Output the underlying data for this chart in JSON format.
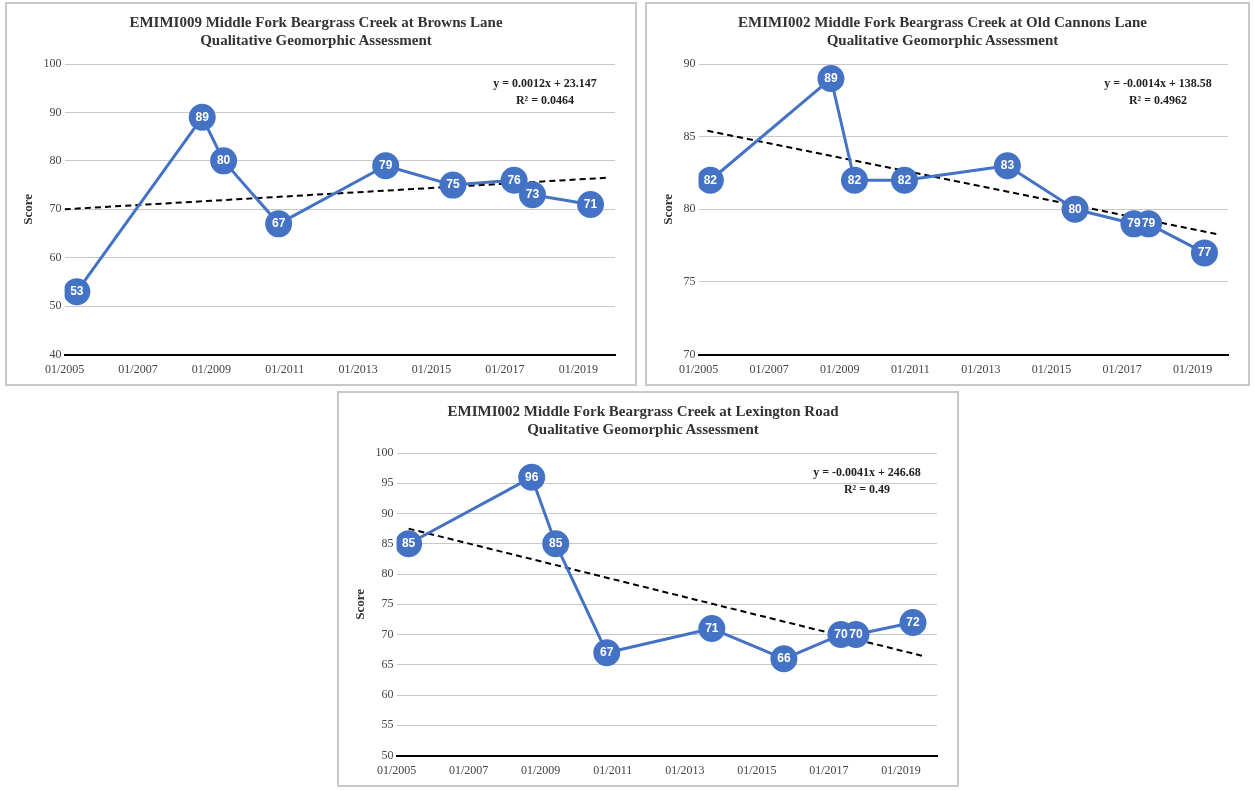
{
  "chart_data": [
    {
      "type": "line",
      "title": [
        "EMIMI009 Middle Fork Beargrass Creek at Browns Lane",
        "Qualitative Geomorphic Assessment"
      ],
      "ylabel": "Score",
      "xlim": [
        "2005-01",
        "2020-01"
      ],
      "xticks": [
        {
          "value": "2005-01",
          "label": "01/2005"
        },
        {
          "value": "2007-01",
          "label": "01/2007"
        },
        {
          "value": "2009-01",
          "label": "01/2009"
        },
        {
          "value": "2011-01",
          "label": "01/2011"
        },
        {
          "value": "2013-01",
          "label": "01/2013"
        },
        {
          "value": "2015-01",
          "label": "01/2015"
        },
        {
          "value": "2017-01",
          "label": "01/2017"
        },
        {
          "value": "2019-01",
          "label": "01/2019"
        }
      ],
      "ylim": [
        40,
        100
      ],
      "yticks": [
        40,
        50,
        60,
        70,
        80,
        90,
        100
      ],
      "grid": "y",
      "legend": false,
      "annotations": [
        "y = 0.0012x + 23.147",
        "R² = 0.0464"
      ],
      "series": [
        {
          "color": "#4472c4",
          "marker": "circle",
          "data_labels": true,
          "x": [
            "2005-05",
            "2008-10",
            "2009-05",
            "2010-11",
            "2013-10",
            "2015-08",
            "2017-04",
            "2017-10",
            "2019-05"
          ],
          "values": [
            53,
            89,
            80,
            67,
            79,
            75,
            76,
            73,
            71
          ]
        },
        {
          "type": "line",
          "color": "#000000",
          "line_style": "dashed",
          "marker": "none",
          "x": [
            "2005-01",
            "2019-10"
          ],
          "values": [
            70,
            76.5
          ]
        }
      ]
    },
    {
      "type": "line",
      "title": [
        "EMIMI002 Middle Fork Beargrass Creek at Old Cannons Lane",
        "Qualitative Geomorphic Assessment"
      ],
      "ylabel": "Score",
      "xlim": [
        "2005-01",
        "2020-01"
      ],
      "xticks": [
        {
          "value": "2005-01",
          "label": "01/2005"
        },
        {
          "value": "2007-01",
          "label": "01/2007"
        },
        {
          "value": "2009-01",
          "label": "01/2009"
        },
        {
          "value": "2011-01",
          "label": "01/2011"
        },
        {
          "value": "2013-01",
          "label": "01/2013"
        },
        {
          "value": "2015-01",
          "label": "01/2015"
        },
        {
          "value": "2017-01",
          "label": "01/2017"
        },
        {
          "value": "2019-01",
          "label": "01/2019"
        }
      ],
      "ylim": [
        70,
        90
      ],
      "yticks": [
        70,
        75,
        80,
        85,
        90
      ],
      "grid": "y",
      "legend": false,
      "annotations": [
        "y = -0.0014x + 138.58",
        "R² = 0.4962"
      ],
      "series": [
        {
          "color": "#4472c4",
          "marker": "circle",
          "data_labels": true,
          "x": [
            "2005-05",
            "2008-10",
            "2009-06",
            "2010-11",
            "2013-10",
            "2015-09",
            "2017-05",
            "2017-10",
            "2019-05"
          ],
          "values": [
            82,
            89,
            82,
            82,
            83,
            80,
            79,
            79,
            77
          ]
        },
        {
          "type": "line",
          "color": "#000000",
          "line_style": "dashed",
          "marker": "none",
          "x": [
            "2005-04",
            "2019-09"
          ],
          "values": [
            85.4,
            78.3
          ]
        }
      ]
    },
    {
      "type": "line",
      "title": [
        "EMIMI002 Middle Fork Beargrass Creek at Lexington Road",
        "Qualitative Geomorphic Assessment"
      ],
      "ylabel": "Score",
      "xlim": [
        "2005-01",
        "2020-01"
      ],
      "xticks": [
        {
          "value": "2005-01",
          "label": "01/2005"
        },
        {
          "value": "2007-01",
          "label": "01/2007"
        },
        {
          "value": "2009-01",
          "label": "01/2009"
        },
        {
          "value": "2011-01",
          "label": "01/2011"
        },
        {
          "value": "2013-01",
          "label": "01/2013"
        },
        {
          "value": "2015-01",
          "label": "01/2015"
        },
        {
          "value": "2017-01",
          "label": "01/2017"
        },
        {
          "value": "2019-01",
          "label": "01/2019"
        }
      ],
      "ylim": [
        50,
        100
      ],
      "yticks": [
        50,
        55,
        60,
        65,
        70,
        75,
        80,
        85,
        90,
        95,
        100
      ],
      "grid": "y",
      "legend": false,
      "annotations": [
        "y = -0.0041x + 246.68",
        "R² = 0.49"
      ],
      "series": [
        {
          "color": "#4472c4",
          "marker": "circle",
          "data_labels": true,
          "x": [
            "2005-05",
            "2008-10",
            "2009-06",
            "2010-11",
            "2013-10",
            "2015-10",
            "2017-05",
            "2017-10",
            "2019-05"
          ],
          "values": [
            85,
            96,
            85,
            67,
            71,
            66,
            70,
            70,
            72
          ]
        },
        {
          "type": "line",
          "color": "#000000",
          "line_style": "dashed",
          "marker": "none",
          "x": [
            "2005-05",
            "2019-08"
          ],
          "values": [
            87.5,
            66.5
          ]
        }
      ]
    }
  ]
}
